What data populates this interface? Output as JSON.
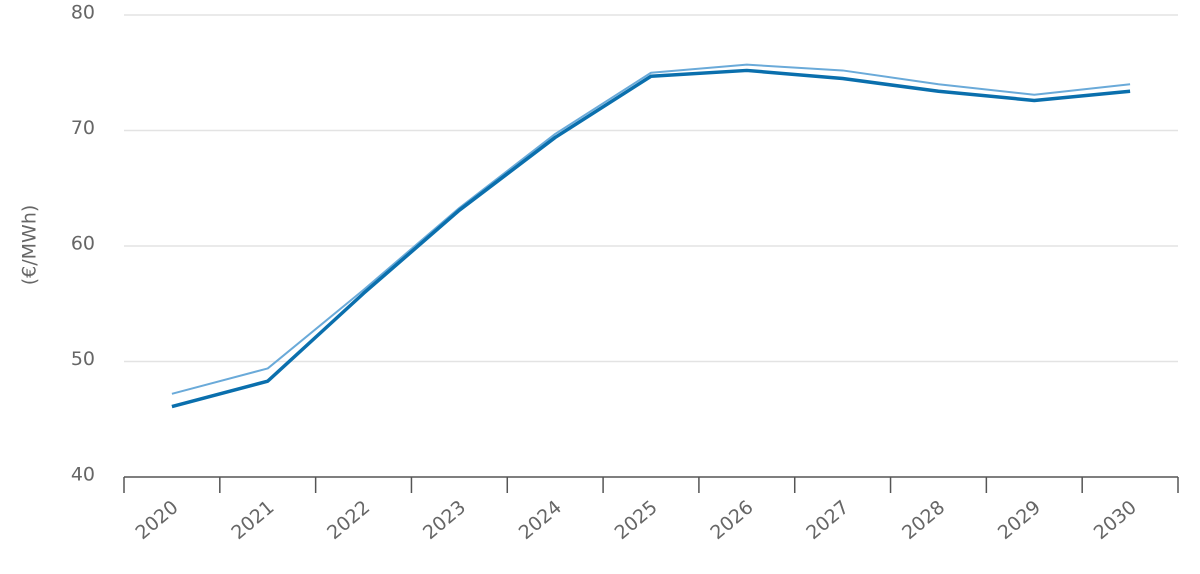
{
  "chart_data": {
    "type": "line",
    "y_label": "(€/MWh)",
    "categories": [
      "2020",
      "2021",
      "2022",
      "2023",
      "2024",
      "2025",
      "2026",
      "2027",
      "2028",
      "2029",
      "2030"
    ],
    "series": [
      {
        "color": "#6aaad9",
        "width": 2,
        "values": [
          47.2,
          49.4,
          56.2,
          63.3,
          69.7,
          75.0,
          75.7,
          75.2,
          74.0,
          73.1,
          74.0
        ]
      },
      {
        "color": "#0a6fad",
        "width": 3.5,
        "values": [
          46.1,
          48.3,
          55.9,
          63.1,
          69.4,
          74.7,
          75.2,
          74.5,
          73.4,
          72.6,
          73.4
        ]
      }
    ],
    "ylim": [
      40,
      80
    ],
    "yticks": [
      40,
      50,
      60,
      70,
      80
    ],
    "grid": true
  }
}
